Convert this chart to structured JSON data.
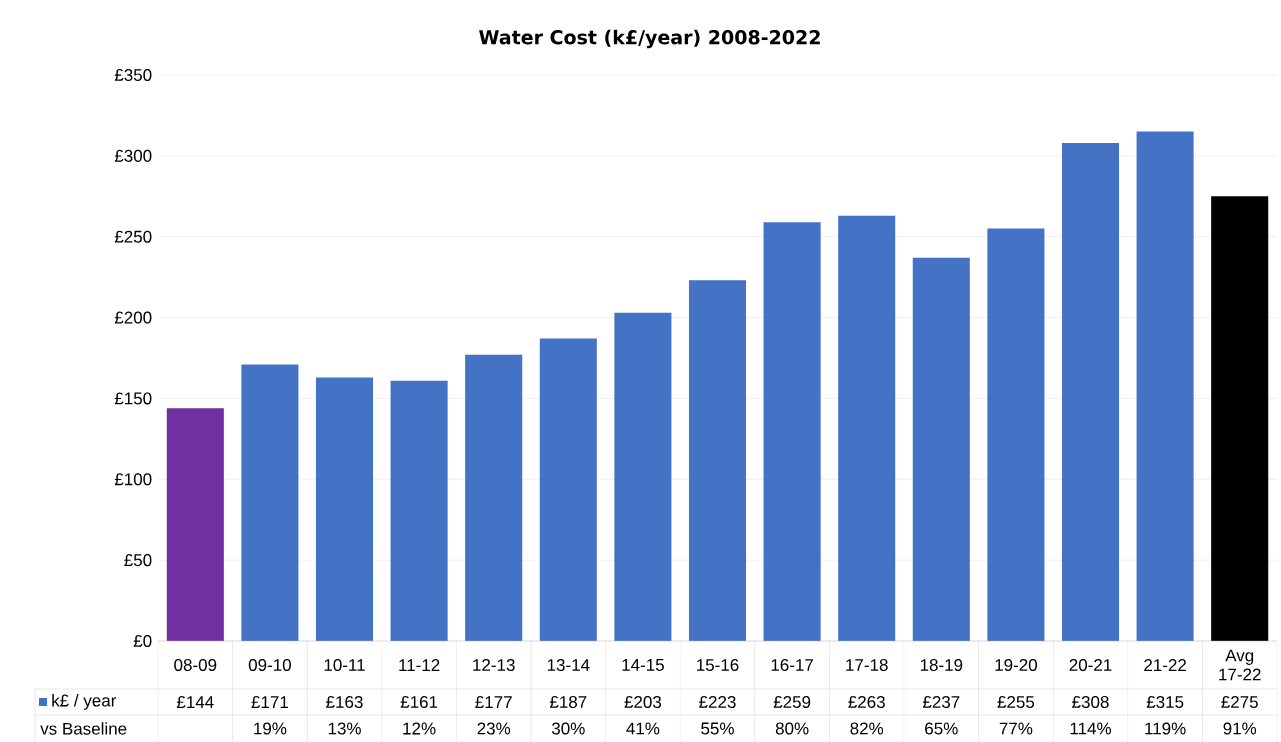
{
  "chart_data": {
    "type": "bar",
    "title": "Water Cost (k£/year) 2008-2022",
    "categories": [
      "08-09",
      "09-10",
      "10-11",
      "11-12",
      "12-13",
      "13-14",
      "14-15",
      "15-16",
      "16-17",
      "17-18",
      "18-19",
      "19-20",
      "20-21",
      "21-22",
      "Avg 17-22"
    ],
    "series": [
      {
        "name": "k£ / year",
        "color": "#4472c4",
        "colors": [
          "#7030a0",
          "#4472c4",
          "#4472c4",
          "#4472c4",
          "#4472c4",
          "#4472c4",
          "#4472c4",
          "#4472c4",
          "#4472c4",
          "#4472c4",
          "#4472c4",
          "#4472c4",
          "#4472c4",
          "#4472c4",
          "#000000"
        ],
        "values": [
          144,
          171,
          163,
          161,
          177,
          187,
          203,
          223,
          259,
          263,
          237,
          255,
          308,
          315,
          275
        ],
        "value_labels": [
          "£144",
          "£171",
          "£163",
          "£161",
          "£177",
          "£187",
          "£203",
          "£223",
          "£259",
          "£263",
          "£237",
          "£255",
          "£308",
          "£315",
          "£275"
        ]
      }
    ],
    "ylim": [
      0,
      350
    ],
    "yticks": [
      {
        "value": 0,
        "label": "£0"
      },
      {
        "value": 50,
        "label": "£50"
      },
      {
        "value": 100,
        "label": "£100"
      },
      {
        "value": 150,
        "label": "£150"
      },
      {
        "value": 200,
        "label": "£200"
      },
      {
        "value": 250,
        "label": "£250"
      },
      {
        "value": 300,
        "label": "£300"
      },
      {
        "value": 350,
        "label": "£350"
      }
    ],
    "grid": "y",
    "legend": "bottom",
    "annotations": [
      "vs Baseline",
      "19%",
      "13%",
      "12%",
      "23%",
      "30%",
      "41%",
      "55%",
      "80%",
      "82%",
      "65%",
      "77%",
      "114%",
      "119%",
      "91%"
    ]
  }
}
